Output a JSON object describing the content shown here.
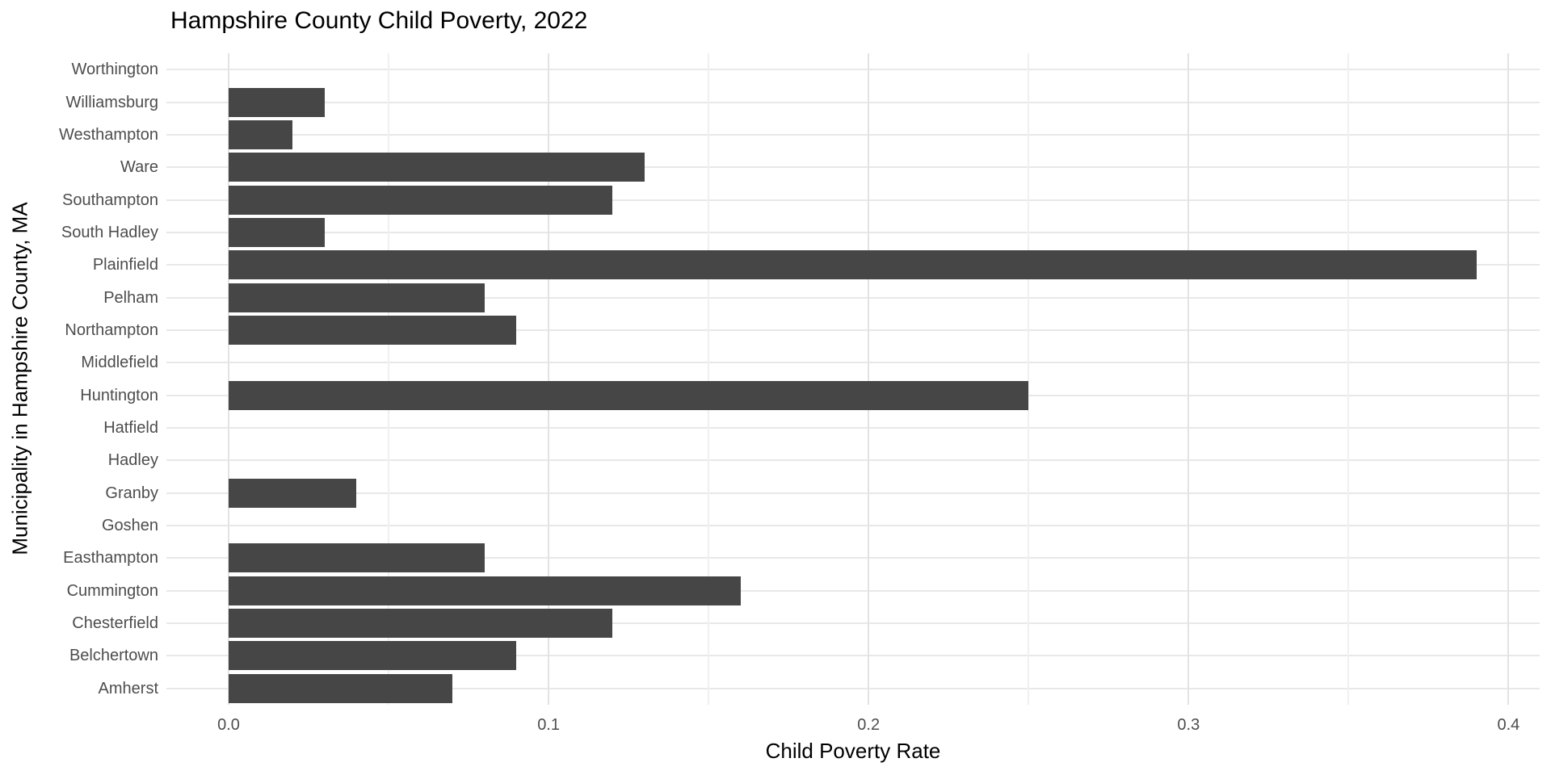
{
  "chart_data": {
    "type": "bar",
    "orientation": "horizontal",
    "title": "Hampshire County Child Poverty, 2022",
    "xlabel": "Child Poverty Rate",
    "ylabel": "Municipality in Hampshire County, MA",
    "categories": [
      "Worthington",
      "Williamsburg",
      "Westhampton",
      "Ware",
      "Southampton",
      "South Hadley",
      "Plainfield",
      "Pelham",
      "Northampton",
      "Middlefield",
      "Huntington",
      "Hatfield",
      "Hadley",
      "Granby",
      "Goshen",
      "Easthampton",
      "Cummington",
      "Chesterfield",
      "Belchertown",
      "Amherst"
    ],
    "values": [
      0.0,
      0.03,
      0.02,
      0.13,
      0.12,
      0.03,
      0.39,
      0.08,
      0.09,
      0.0,
      0.25,
      0.0,
      0.0,
      0.04,
      0.0,
      0.08,
      0.16,
      0.12,
      0.09,
      0.07
    ],
    "xlim": [
      -0.0195,
      0.4095
    ],
    "x_major_ticks": [
      0.0,
      0.1,
      0.2,
      0.3,
      0.4
    ],
    "x_tick_labels": [
      "0.0",
      "0.1",
      "0.2",
      "0.3",
      "0.4"
    ],
    "x_minor_ticks": [
      0.05,
      0.15,
      0.25,
      0.35
    ],
    "grid": true,
    "legend": false,
    "bar_color": "#464646",
    "colors": {
      "bar": "#464646",
      "grid_major": "#e3e3e3",
      "grid_minor": "#f0f0f0",
      "tick_text": "#4d4d4d",
      "title_text": "#000000",
      "background": "#ffffff"
    }
  }
}
